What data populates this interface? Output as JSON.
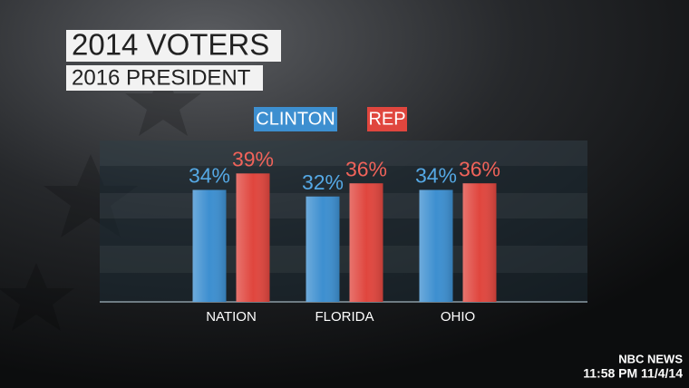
{
  "chart_data": {
    "type": "bar",
    "title": "2014 VOTERS",
    "subtitle": "2016 PRESIDENT",
    "categories": [
      "NATION",
      "FLORIDA",
      "OHIO"
    ],
    "series": [
      {
        "name": "CLINTON",
        "color": "#3d8fd0",
        "values": [
          34,
          32,
          34
        ],
        "value_labels": [
          "34%",
          "32%",
          "34%"
        ]
      },
      {
        "name": "REP",
        "color": "#e0463e",
        "values": [
          39,
          36,
          36
        ],
        "value_labels": [
          "39%",
          "36%",
          "36%"
        ]
      }
    ],
    "ylim": [
      0,
      49
    ]
  },
  "network": "NBC NEWS",
  "timestamp": "11:58 PM 11/4/14"
}
